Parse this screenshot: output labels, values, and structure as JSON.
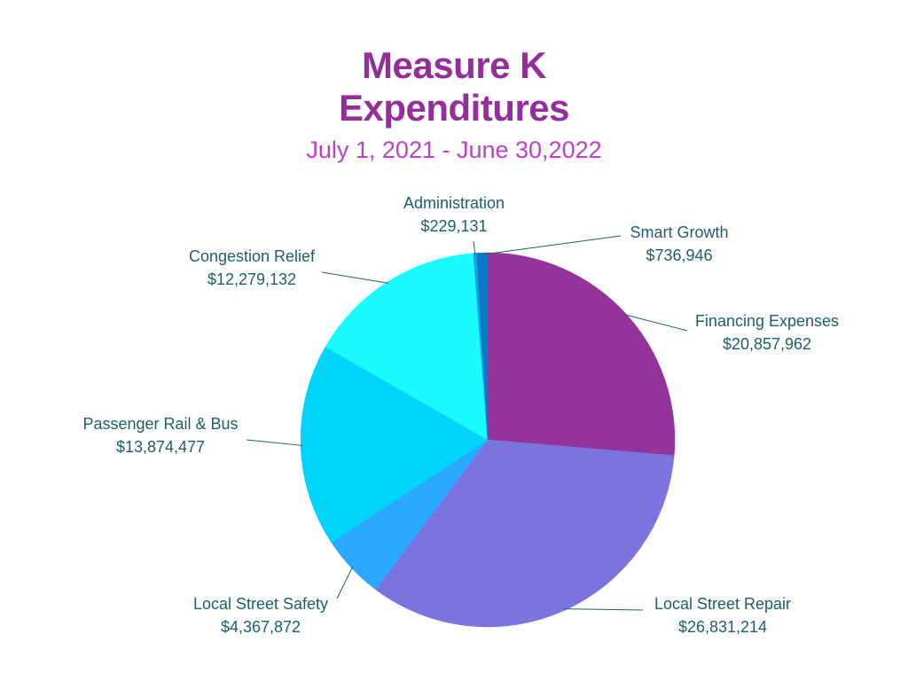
{
  "chart_data": {
    "type": "pie",
    "title": "Measure K Expenditures",
    "subtitle": "July 1, 2021 - June 30,2022",
    "categories": [
      "Financing Expenses",
      "Local Street Repair",
      "Local Street Safety",
      "Passenger Rail & Bus",
      "Congestion Relief",
      "Administration",
      "Smart Growth"
    ],
    "values": [
      20857962,
      26831214,
      4367872,
      13874477,
      12279132,
      229131,
      736946
    ],
    "value_labels": [
      "$20,857,962",
      "$26,831,214",
      "$4,367,872",
      "$13,874,477",
      "$12,279,132",
      "$229,131",
      "$736,946"
    ],
    "colors": [
      "#943399",
      "#7b74df",
      "#2aa8ff",
      "#00d4fa",
      "#19fbff",
      "#1aa0e0",
      "#0b79c9"
    ]
  }
}
